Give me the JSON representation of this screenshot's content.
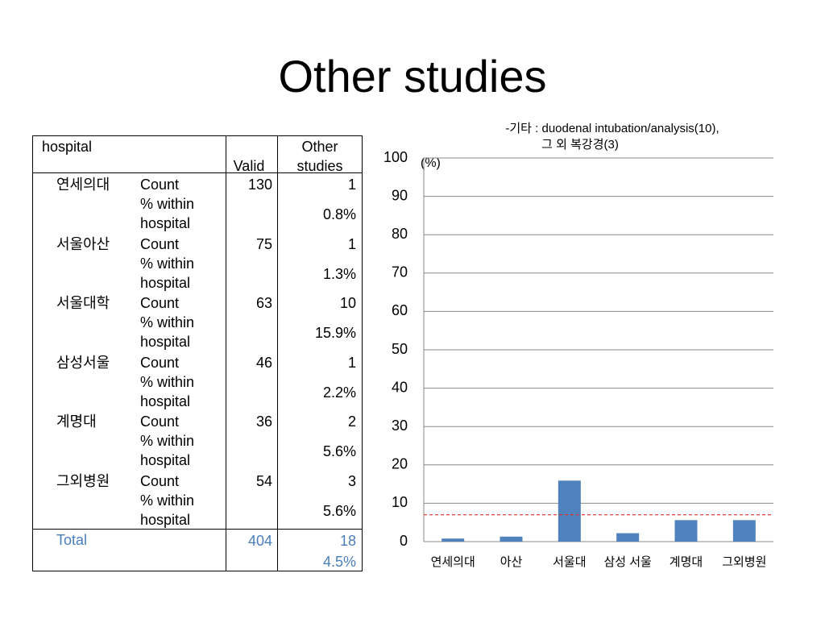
{
  "title": "Other studies",
  "table": {
    "header": [
      "hospital",
      "Valid",
      "Other studies"
    ],
    "rows": [
      {
        "hospital": "연세의대",
        "count_label": "Count",
        "valid": 130,
        "other": 1,
        "pct_label": "% within hospital",
        "pct": "0.8%"
      },
      {
        "hospital": "서울아산",
        "count_label": "Count",
        "valid": 75,
        "other": 1,
        "pct_label": "% within hospital",
        "pct": "1.3%"
      },
      {
        "hospital": "서울대학",
        "count_label": "Count",
        "valid": 63,
        "other": 10,
        "pct_label": "% within hospital",
        "pct": "15.9%"
      },
      {
        "hospital": "삼성서울",
        "count_label": "Count",
        "valid": 46,
        "other": 1,
        "pct_label": "% within hospital",
        "pct": "2.2%"
      },
      {
        "hospital": "계명대",
        "count_label": "Count",
        "valid": 36,
        "other": 2,
        "pct_label": "% within hospital",
        "pct": "5.6%"
      },
      {
        "hospital": "그외병원",
        "count_label": "Count",
        "valid": 54,
        "other": 3,
        "pct_label": "% within hospital",
        "pct": "5.6%"
      }
    ],
    "total": {
      "label": "Total",
      "valid": 404,
      "other": 18,
      "pct": "4.5%"
    }
  },
  "chart_data": {
    "type": "bar",
    "annotations": [
      "-기타 : duodenal intubation/analysis(10),",
      "그 외 복강경(3)"
    ],
    "y_label": "(%)",
    "categories": [
      "연세의대",
      "아산",
      "서울대",
      "삼성 서울",
      "계명대",
      "그외병원"
    ],
    "values": [
      0.8,
      1.3,
      15.9,
      2.2,
      5.6,
      5.6
    ],
    "color": "#4f81bd",
    "ylim": [
      0,
      100
    ],
    "yticks": [
      0,
      10,
      20,
      30,
      40,
      50,
      60,
      70,
      80,
      90,
      100
    ],
    "grid": true,
    "reference_line": {
      "value": 7,
      "color": "#e03030"
    }
  }
}
